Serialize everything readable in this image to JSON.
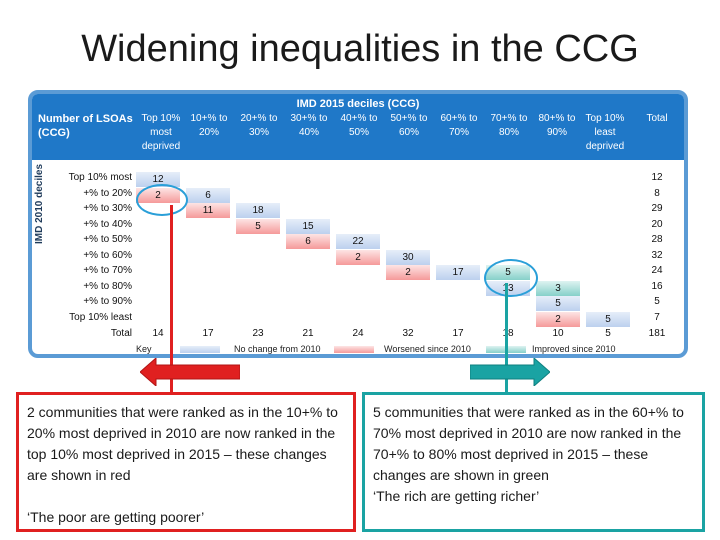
{
  "title": "Widening inequalities in the CCG",
  "table": {
    "top_header": "IMD 2015 deciles (CCG)",
    "corner": "Number of LSOAs (CCG)",
    "side_label": "IMD 2010 deciles",
    "col_headers": [
      "Top 10% most deprived",
      "10+% to 20%",
      "20+% to 30%",
      "30+% to 40%",
      "40+% to 50%",
      "50+% to 60%",
      "60+% to 70%",
      "70+% to 80%",
      "80+% to 90%",
      "Top 10% least deprived",
      "Total"
    ],
    "row_labels": [
      "Top 10% most",
      "+% to 20%",
      "+% to 30%",
      "+% to 40%",
      "+% to 50%",
      "+% to 60%",
      "+% to 70%",
      "+% to 80%",
      "+% to 90%",
      "Top 10% least",
      "Total"
    ],
    "cells": [
      {
        "row": 0,
        "col": 0,
        "value": "12",
        "color": "blue"
      },
      {
        "row": 1,
        "col": 0,
        "value": "2",
        "color": "red"
      },
      {
        "row": 1,
        "col": 1,
        "value": "6",
        "color": "blue"
      },
      {
        "row": 2,
        "col": 1,
        "value": "11",
        "color": "red"
      },
      {
        "row": 2,
        "col": 2,
        "value": "18",
        "color": "blue"
      },
      {
        "row": 3,
        "col": 2,
        "value": "5",
        "color": "red"
      },
      {
        "row": 3,
        "col": 3,
        "value": "15",
        "color": "blue"
      },
      {
        "row": 4,
        "col": 3,
        "value": "6",
        "color": "red"
      },
      {
        "row": 4,
        "col": 4,
        "value": "22",
        "color": "blue"
      },
      {
        "row": 5,
        "col": 4,
        "value": "2",
        "color": "red"
      },
      {
        "row": 5,
        "col": 5,
        "value": "30",
        "color": "blue"
      },
      {
        "row": 6,
        "col": 5,
        "value": "2",
        "color": "red"
      },
      {
        "row": 6,
        "col": 6,
        "value": "17",
        "color": "blue"
      },
      {
        "row": 6,
        "col": 7,
        "value": "5",
        "color": "green"
      },
      {
        "row": 7,
        "col": 7,
        "value": "13",
        "color": "blue"
      },
      {
        "row": 7,
        "col": 8,
        "value": "3",
        "color": "green"
      },
      {
        "row": 8,
        "col": 8,
        "value": "5",
        "color": "blue"
      },
      {
        "row": 9,
        "col": 8,
        "value": "2",
        "color": "red"
      },
      {
        "row": 9,
        "col": 9,
        "value": "5",
        "color": "blue"
      }
    ],
    "row_totals": [
      "12",
      "8",
      "29",
      "20",
      "28",
      "32",
      "24",
      "16",
      "5",
      "7"
    ],
    "col_totals": [
      "14",
      "17",
      "23",
      "21",
      "24",
      "32",
      "17",
      "18",
      "10",
      "5",
      "181"
    ],
    "key": {
      "label": "Key",
      "no_change": "No change from 2010",
      "worsened": "Worsened since 2010",
      "improved": "Improved since 2010"
    }
  },
  "red_box": {
    "text": "2 communities that were ranked as in the 10+% to 20% most deprived in 2010 are now ranked in the top 10% most deprived in 2015 – these changes are shown in red",
    "quote": "‘The poor are getting poorer’"
  },
  "green_box": {
    "text": "5 communities that were ranked as in the 60+% to 70% most deprived in 2010 are now ranked in the 70+% to 80% most deprived in 2015 – these changes are shown in green",
    "quote": "‘The rich are getting richer’"
  },
  "colors": {
    "red": "#e02020",
    "green": "#1aa3a3",
    "header": "#1f78c8",
    "frame": "#5b9bd5"
  }
}
